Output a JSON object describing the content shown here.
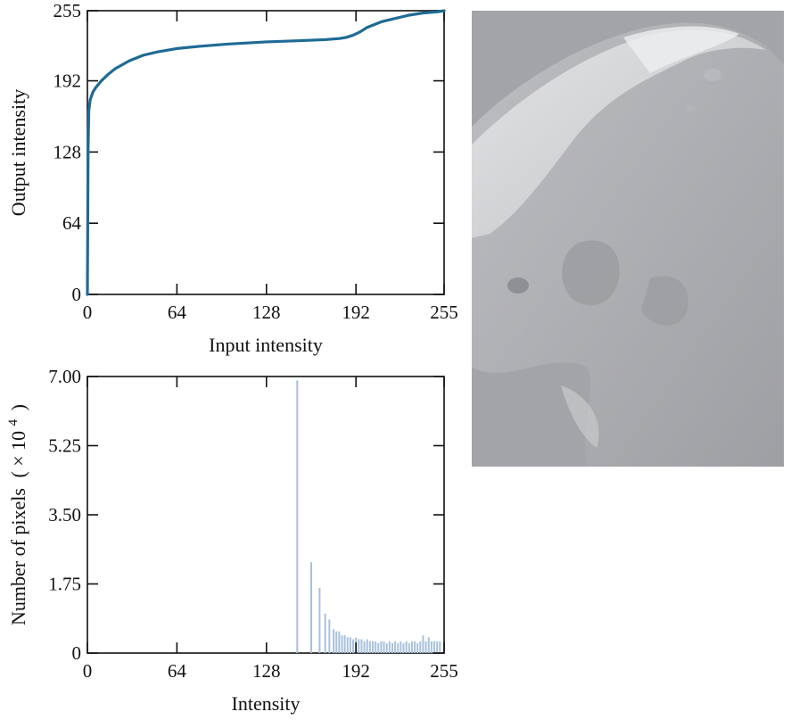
{
  "chart_data": [
    {
      "type": "line",
      "xlabel": "Input intensity",
      "ylabel": "Output intensity",
      "xlim": [
        0,
        255
      ],
      "ylim": [
        0,
        255
      ],
      "xticks": [
        "0",
        "64",
        "128",
        "192",
        "255"
      ],
      "yticks": [
        "0",
        "64",
        "128",
        "192",
        "255"
      ],
      "line_color": "#1f6a96",
      "series": [
        {
          "x": [
            0,
            0.5,
            1,
            2,
            4,
            6,
            10,
            15,
            20,
            30,
            40,
            50,
            64,
            80,
            100,
            128,
            150,
            170,
            180,
            185,
            190,
            195,
            200,
            210,
            220,
            230,
            240,
            250,
            255
          ],
          "y": [
            0,
            130,
            165,
            175,
            182,
            186,
            192,
            198,
            203,
            210,
            215,
            218,
            221,
            223,
            225,
            227,
            228,
            229,
            230,
            231,
            233,
            236,
            240,
            245,
            248,
            251,
            253,
            254,
            255
          ]
        }
      ]
    },
    {
      "type": "bar",
      "xlabel": "Intensity",
      "ylabel": "Number of pixels",
      "ylabel_unit": "( × 10",
      "ylabel_exp": "4",
      "ylabel_close": ")",
      "xlim": [
        0,
        255
      ],
      "ylim": [
        0,
        7.0
      ],
      "xticks": [
        "0",
        "64",
        "128",
        "192",
        "255"
      ],
      "yticks": [
        "0",
        "1.75",
        "3.50",
        "5.25",
        "7.00"
      ],
      "bar_color": "#a9c1dc",
      "bars": {
        "x": [
          150,
          160,
          166,
          170,
          173,
          176,
          178,
          180,
          182,
          184,
          186,
          188,
          190,
          192,
          194,
          196,
          198,
          200,
          202,
          204,
          206,
          208,
          210,
          212,
          214,
          216,
          218,
          220,
          222,
          224,
          226,
          228,
          230,
          232,
          234,
          236,
          238,
          240,
          242,
          244,
          246,
          248,
          250,
          252
        ],
        "values": [
          6.9,
          2.3,
          1.65,
          1.0,
          0.85,
          0.6,
          0.55,
          0.55,
          0.45,
          0.45,
          0.4,
          0.4,
          0.35,
          0.4,
          0.35,
          0.35,
          0.3,
          0.35,
          0.3,
          0.3,
          0.3,
          0.25,
          0.3,
          0.3,
          0.25,
          0.3,
          0.25,
          0.3,
          0.25,
          0.3,
          0.25,
          0.3,
          0.25,
          0.3,
          0.3,
          0.25,
          0.3,
          0.45,
          0.3,
          0.4,
          0.3,
          0.3,
          0.3,
          0.3
        ]
      }
    }
  ],
  "photo": {
    "kind": "moon-surface",
    "background": "#a2a3a6"
  }
}
